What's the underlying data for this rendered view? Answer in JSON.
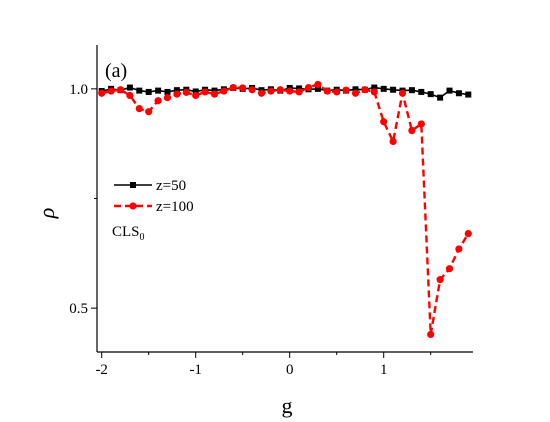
{
  "chart_data": {
    "type": "line",
    "panel_label": "(a)",
    "annotation": {
      "text": "CLS",
      "subscript": "0"
    },
    "xlabel": "g",
    "ylabel": "ρ",
    "xlim": [
      -2.05,
      1.95
    ],
    "ylim": [
      0.4,
      1.1
    ],
    "xticks": [
      -2,
      -1,
      0,
      1
    ],
    "xticklabels": [
      "-2",
      "-1",
      "0",
      "1"
    ],
    "yticks": [
      0.5,
      1.0
    ],
    "yticklabels": [
      "0.5",
      "1.0"
    ],
    "legend_position": "middle-left",
    "grid": false,
    "series": [
      {
        "name": "z=50",
        "color": "#000000",
        "line": "solid",
        "marker": "square",
        "x": [
          -2.0,
          -1.9,
          -1.8,
          -1.7,
          -1.6,
          -1.5,
          -1.4,
          -1.3,
          -1.2,
          -1.1,
          -1.0,
          -0.9,
          -0.8,
          -0.7,
          -0.6,
          -0.5,
          -0.4,
          -0.3,
          -0.2,
          -0.1,
          0.0,
          0.1,
          0.2,
          0.3,
          0.4,
          0.5,
          0.6,
          0.7,
          0.8,
          0.9,
          1.0,
          1.1,
          1.2,
          1.3,
          1.4,
          1.5,
          1.6,
          1.7,
          1.8,
          1.9
        ],
        "y": [
          0.995,
          1.0,
          0.997,
          1.003,
          0.996,
          0.993,
          0.996,
          0.993,
          0.997,
          0.998,
          0.994,
          0.998,
          0.996,
          0.999,
          1.002,
          1.0,
          1.002,
          0.997,
          0.999,
          0.996,
          1.002,
          1.001,
          0.999,
          1.0,
          0.996,
          0.998,
          0.996,
          0.999,
          0.998,
          1.003,
          1.0,
          0.998,
          0.996,
          0.997,
          0.993,
          0.988,
          0.98,
          0.996,
          0.99,
          0.987
        ]
      },
      {
        "name": "z=100",
        "color": "#ff0000",
        "line": "dashed",
        "marker": "circle",
        "x": [
          -2.0,
          -1.9,
          -1.8,
          -1.7,
          -1.6,
          -1.5,
          -1.4,
          -1.3,
          -1.2,
          -1.1,
          -1.0,
          -0.9,
          -0.8,
          -0.7,
          -0.6,
          -0.5,
          -0.4,
          -0.3,
          -0.2,
          -0.1,
          0.0,
          0.1,
          0.2,
          0.3,
          0.4,
          0.5,
          0.6,
          0.7,
          0.8,
          0.9,
          1.0,
          1.1,
          1.2,
          1.3,
          1.4,
          1.5,
          1.6,
          1.7,
          1.8,
          1.9
        ],
        "y": [
          0.99,
          0.995,
          0.998,
          0.985,
          0.955,
          0.948,
          0.973,
          0.98,
          0.988,
          0.992,
          0.985,
          0.993,
          0.988,
          0.995,
          1.003,
          1.002,
          0.998,
          0.99,
          0.995,
          0.998,
          0.995,
          0.993,
          1.003,
          1.01,
          0.995,
          0.993,
          0.997,
          0.99,
          0.998,
          0.993,
          0.925,
          0.88,
          0.99,
          0.905,
          0.92,
          0.44,
          0.565,
          0.59,
          0.635,
          0.67
        ]
      }
    ]
  }
}
